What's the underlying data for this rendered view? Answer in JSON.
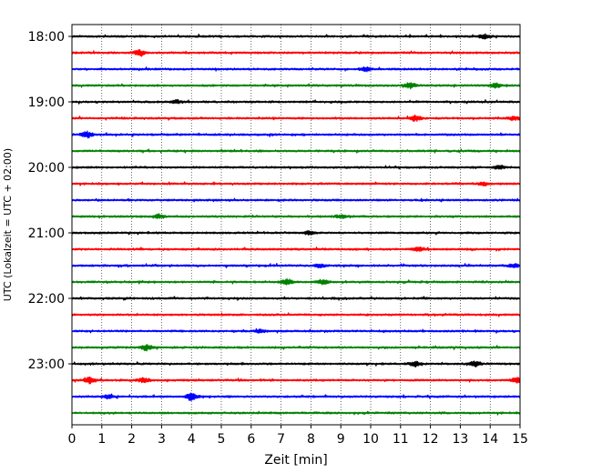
{
  "chart_data": {
    "type": "line",
    "xlabel": "Zeit  [min]",
    "ylabel": "UTC (Lokalzeit = UTC + 02:00)",
    "xlim": [
      0,
      15
    ],
    "x_ticks": [
      "0",
      "1",
      "2",
      "3",
      "4",
      "5",
      "6",
      "7",
      "8",
      "9",
      "10",
      "11",
      "12",
      "13",
      "14",
      "15"
    ],
    "y_ticks": [
      "18:00",
      "19:00",
      "20:00",
      "21:00",
      "22:00",
      "23:00"
    ],
    "grid": "vertical dotted",
    "trace_interval_minutes": 15,
    "start_time": "18:00",
    "end_time": "23:45",
    "trace_colors": [
      "#000000",
      "#ff0000",
      "#0000ff",
      "#008000"
    ],
    "traces": [
      {
        "time": "18:00",
        "color": "#000000",
        "events": [
          {
            "x": 13.8,
            "amp": 0.45
          }
        ]
      },
      {
        "time": "18:15",
        "color": "#ff0000",
        "events": [
          {
            "x": 2.25,
            "amp": 0.5
          }
        ]
      },
      {
        "time": "18:30",
        "color": "#0000ff",
        "events": [
          {
            "x": 9.8,
            "amp": 0.45
          }
        ]
      },
      {
        "time": "18:45",
        "color": "#008000",
        "events": [
          {
            "x": 11.3,
            "amp": 0.55
          },
          {
            "x": 14.2,
            "amp": 0.45
          }
        ]
      },
      {
        "time": "19:00",
        "color": "#000000",
        "events": [
          {
            "x": 3.5,
            "amp": 0.3
          }
        ]
      },
      {
        "time": "19:15",
        "color": "#ff0000",
        "events": [
          {
            "x": 11.5,
            "amp": 0.55
          },
          {
            "x": 14.8,
            "amp": 0.4
          }
        ]
      },
      {
        "time": "19:30",
        "color": "#0000ff",
        "events": [
          {
            "x": 0.5,
            "amp": 0.6
          }
        ]
      },
      {
        "time": "19:45",
        "color": "#008000",
        "events": []
      },
      {
        "time": "20:00",
        "color": "#000000",
        "events": [
          {
            "x": 14.3,
            "amp": 0.35
          }
        ]
      },
      {
        "time": "20:15",
        "color": "#ff0000",
        "events": [
          {
            "x": 13.8,
            "amp": 0.3
          }
        ]
      },
      {
        "time": "20:30",
        "color": "#0000ff",
        "events": []
      },
      {
        "time": "20:45",
        "color": "#008000",
        "events": [
          {
            "x": 2.9,
            "amp": 0.4
          },
          {
            "x": 9.0,
            "amp": 0.3
          }
        ]
      },
      {
        "time": "21:00",
        "color": "#000000",
        "events": [
          {
            "x": 7.95,
            "amp": 0.35
          }
        ]
      },
      {
        "time": "21:15",
        "color": "#ff0000",
        "events": [
          {
            "x": 11.6,
            "amp": 0.4
          }
        ]
      },
      {
        "time": "21:30",
        "color": "#0000ff",
        "events": [
          {
            "x": 8.3,
            "amp": 0.35
          },
          {
            "x": 14.8,
            "amp": 0.35
          }
        ]
      },
      {
        "time": "21:45",
        "color": "#008000",
        "events": [
          {
            "x": 7.2,
            "amp": 0.55
          },
          {
            "x": 8.4,
            "amp": 0.45
          }
        ]
      },
      {
        "time": "22:00",
        "color": "#000000",
        "events": []
      },
      {
        "time": "22:15",
        "color": "#ff0000",
        "events": []
      },
      {
        "time": "22:30",
        "color": "#0000ff",
        "events": [
          {
            "x": 6.3,
            "amp": 0.3
          }
        ]
      },
      {
        "time": "22:45",
        "color": "#008000",
        "events": [
          {
            "x": 2.5,
            "amp": 0.55
          }
        ]
      },
      {
        "time": "23:00",
        "color": "#000000",
        "events": [
          {
            "x": 11.5,
            "amp": 0.5
          },
          {
            "x": 13.5,
            "amp": 0.5
          }
        ]
      },
      {
        "time": "23:15",
        "color": "#ff0000",
        "events": [
          {
            "x": 0.6,
            "amp": 0.65
          },
          {
            "x": 2.4,
            "amp": 0.45
          },
          {
            "x": 14.9,
            "amp": 0.6
          }
        ]
      },
      {
        "time": "23:30",
        "color": "#0000ff",
        "events": [
          {
            "x": 4.0,
            "amp": 0.7
          },
          {
            "x": 1.2,
            "amp": 0.35
          }
        ]
      },
      {
        "time": "23:45",
        "color": "#008000",
        "events": []
      }
    ]
  }
}
